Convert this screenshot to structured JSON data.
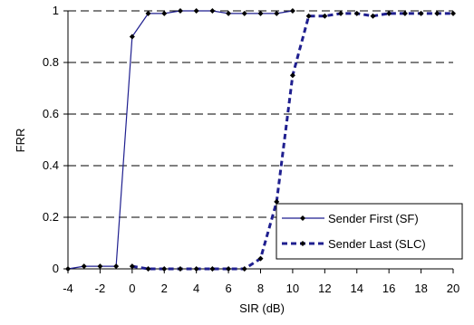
{
  "chart_data": {
    "type": "line",
    "title": "",
    "xlabel": "SIR (dB)",
    "ylabel": "FRR",
    "xlim": [
      -4,
      20
    ],
    "ylim": [
      0,
      1
    ],
    "xticks": [
      "-4",
      "-2",
      "0",
      "2",
      "4",
      "6",
      "8",
      "10",
      "12",
      "14",
      "16",
      "18",
      "20"
    ],
    "yticks": [
      "0",
      "0.2",
      "0.4",
      "0.6",
      "0.8",
      "1"
    ],
    "grid": "horizontal dashed",
    "legend_position": "bottom-right",
    "series": [
      {
        "name": "Sender First (SF)",
        "color": "#1f1f8f",
        "line_style": "solid",
        "marker": "diamond",
        "x": [
          -4,
          -3,
          -2,
          -1,
          0,
          1,
          2,
          3,
          4,
          5,
          6,
          7,
          8,
          9,
          10
        ],
        "y": [
          0.0,
          0.01,
          0.01,
          0.01,
          0.9,
          0.99,
          0.99,
          1.0,
          1.0,
          1.0,
          0.99,
          0.99,
          0.99,
          0.99,
          1.0
        ]
      },
      {
        "name": "Sender Last (SLC)",
        "color": "#1f1f8f",
        "line_style": "dashed",
        "marker": "diamond",
        "x": [
          0,
          1,
          2,
          3,
          4,
          5,
          6,
          7,
          8,
          9,
          10,
          11,
          12,
          13,
          14,
          15,
          16,
          17,
          18,
          19,
          20
        ],
        "y": [
          0.01,
          0.0,
          0.0,
          0.0,
          0.0,
          0.0,
          0.0,
          0.0,
          0.04,
          0.26,
          0.75,
          0.98,
          0.98,
          0.99,
          0.99,
          0.98,
          0.99,
          0.99,
          0.99,
          0.99,
          0.99
        ]
      }
    ]
  }
}
